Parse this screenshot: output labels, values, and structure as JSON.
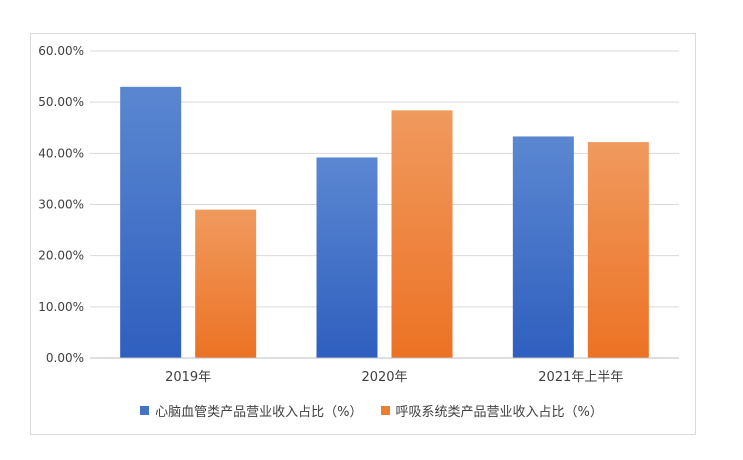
{
  "chart_data": {
    "type": "bar",
    "categories": [
      "2019年",
      "2020年",
      "2021年上半年"
    ],
    "series": [
      {
        "name": "心脑血管类产品营业收入占比（%）",
        "values": [
          53.0,
          39.2,
          43.3
        ],
        "color": "#4472c4"
      },
      {
        "name": "呼吸系统类产品营业收入占比（%）",
        "values": [
          29.0,
          48.4,
          42.2
        ],
        "color": "#ed7d31"
      }
    ],
    "yticks": [
      "0.00%",
      "10.00%",
      "20.00%",
      "30.00%",
      "40.00%",
      "50.00%",
      "60.00%"
    ],
    "ylim": [
      0,
      60
    ],
    "grid": true,
    "legend": "bottom"
  }
}
